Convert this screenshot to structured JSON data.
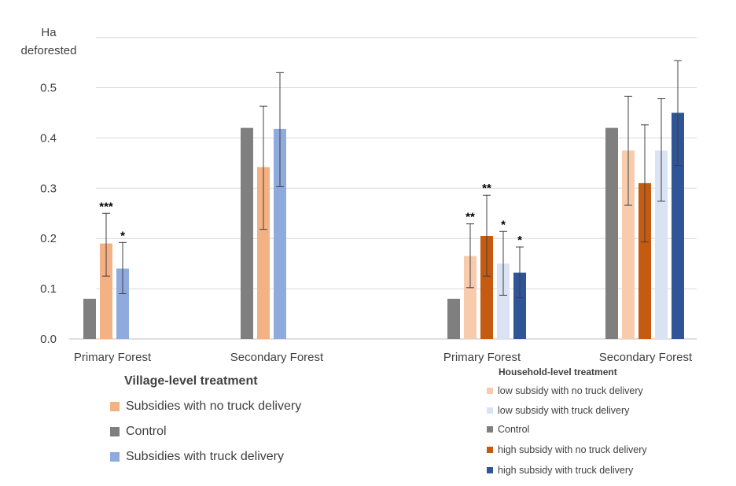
{
  "y_axis_label": "Ha deforested",
  "colors": {
    "grid": "#d9d9d9",
    "axis": "#bfbfbf",
    "text": "#404040",
    "error_bar": "#404040"
  },
  "chart_data": {
    "type": "bar",
    "title": "",
    "ylabel": "Ha deforested",
    "ylim": [
      0,
      0.6
    ],
    "yticks": [
      "0.0",
      "0.1",
      "0.2",
      "0.3",
      "0.4",
      "0.5"
    ],
    "grid": true,
    "groups": [
      {
        "label": "Primary Forest",
        "panel": "village",
        "bars": [
          {
            "series": "Control",
            "value": 0.08,
            "err_low": null,
            "err_high": null,
            "sig": ""
          },
          {
            "series": "Subsidies with no truck delivery",
            "value": 0.19,
            "err_low": 0.125,
            "err_high": 0.25,
            "sig": "***"
          },
          {
            "series": "Subsidies with truck delivery",
            "value": 0.14,
            "err_low": 0.09,
            "err_high": 0.192,
            "sig": "*"
          }
        ]
      },
      {
        "label": "Secondary Forest",
        "panel": "village",
        "bars": [
          {
            "series": "Control",
            "value": 0.42,
            "err_low": null,
            "err_high": null,
            "sig": ""
          },
          {
            "series": "Subsidies with no truck delivery",
            "value": 0.342,
            "err_low": 0.218,
            "err_high": 0.463,
            "sig": ""
          },
          {
            "series": "Subsidies with truck delivery",
            "value": 0.418,
            "err_low": 0.303,
            "err_high": 0.53,
            "sig": ""
          }
        ]
      },
      {
        "label": "Primary Forest",
        "panel": "household",
        "bars": [
          {
            "series": "Control",
            "value": 0.08,
            "err_low": null,
            "err_high": null,
            "sig": ""
          },
          {
            "series": "low subsidy with no truck delivery",
            "value": 0.165,
            "err_low": 0.102,
            "err_high": 0.229,
            "sig": "**"
          },
          {
            "series": "high subsidy with no truck delivery",
            "value": 0.205,
            "err_low": 0.125,
            "err_high": 0.286,
            "sig": "**"
          },
          {
            "series": "low subsidy with truck delivery",
            "value": 0.15,
            "err_low": 0.087,
            "err_high": 0.214,
            "sig": "*"
          },
          {
            "series": "high subsidy with truck delivery",
            "value": 0.132,
            "err_low": 0.082,
            "err_high": 0.183,
            "sig": "*"
          }
        ]
      },
      {
        "label": "Secondary Forest",
        "panel": "household",
        "bars": [
          {
            "series": "Control",
            "value": 0.42,
            "err_low": null,
            "err_high": null,
            "sig": ""
          },
          {
            "series": "low subsidy with no truck delivery",
            "value": 0.375,
            "err_low": 0.266,
            "err_high": 0.483,
            "sig": ""
          },
          {
            "series": "high subsidy with no truck delivery",
            "value": 0.31,
            "err_low": 0.193,
            "err_high": 0.426,
            "sig": ""
          },
          {
            "series": "low subsidy with truck delivery",
            "value": 0.375,
            "err_low": 0.274,
            "err_high": 0.478,
            "sig": ""
          },
          {
            "series": "high subsidy with truck delivery",
            "value": 0.45,
            "err_low": 0.345,
            "err_high": 0.554,
            "sig": ""
          }
        ]
      }
    ],
    "series_colors": {
      "Control": "#7f7f7f",
      "Subsidies with no truck delivery": "#f4b183",
      "Subsidies with truck delivery": "#8faadc",
      "low subsidy with no truck delivery": "#f8cbad",
      "high subsidy with no truck delivery": "#c55a11",
      "low subsidy with truck delivery": "#dae3f3",
      "high subsidy with truck delivery": "#2f5597"
    },
    "legends": {
      "village": {
        "title": "Village-level treatment",
        "items": [
          {
            "label": "Subsidies with no truck delivery",
            "color": "#f4b183"
          },
          {
            "label": "Control",
            "color": "#7f7f7f"
          },
          {
            "label": "Subsidies with truck delivery",
            "color": "#8faadc"
          }
        ]
      },
      "household": {
        "title": "Household-level treatment",
        "items": [
          {
            "label": "low subsidy with no truck delivery",
            "color": "#f8cbad"
          },
          {
            "label": "low subsidy with truck delivery",
            "color": "#dae3f3"
          },
          {
            "label": "Control",
            "color": "#7f7f7f"
          },
          {
            "label": "high subsidy with no truck delivery",
            "color": "#c55a11"
          },
          {
            "label": "high subsidy with truck delivery",
            "color": "#2f5597"
          }
        ]
      }
    }
  }
}
